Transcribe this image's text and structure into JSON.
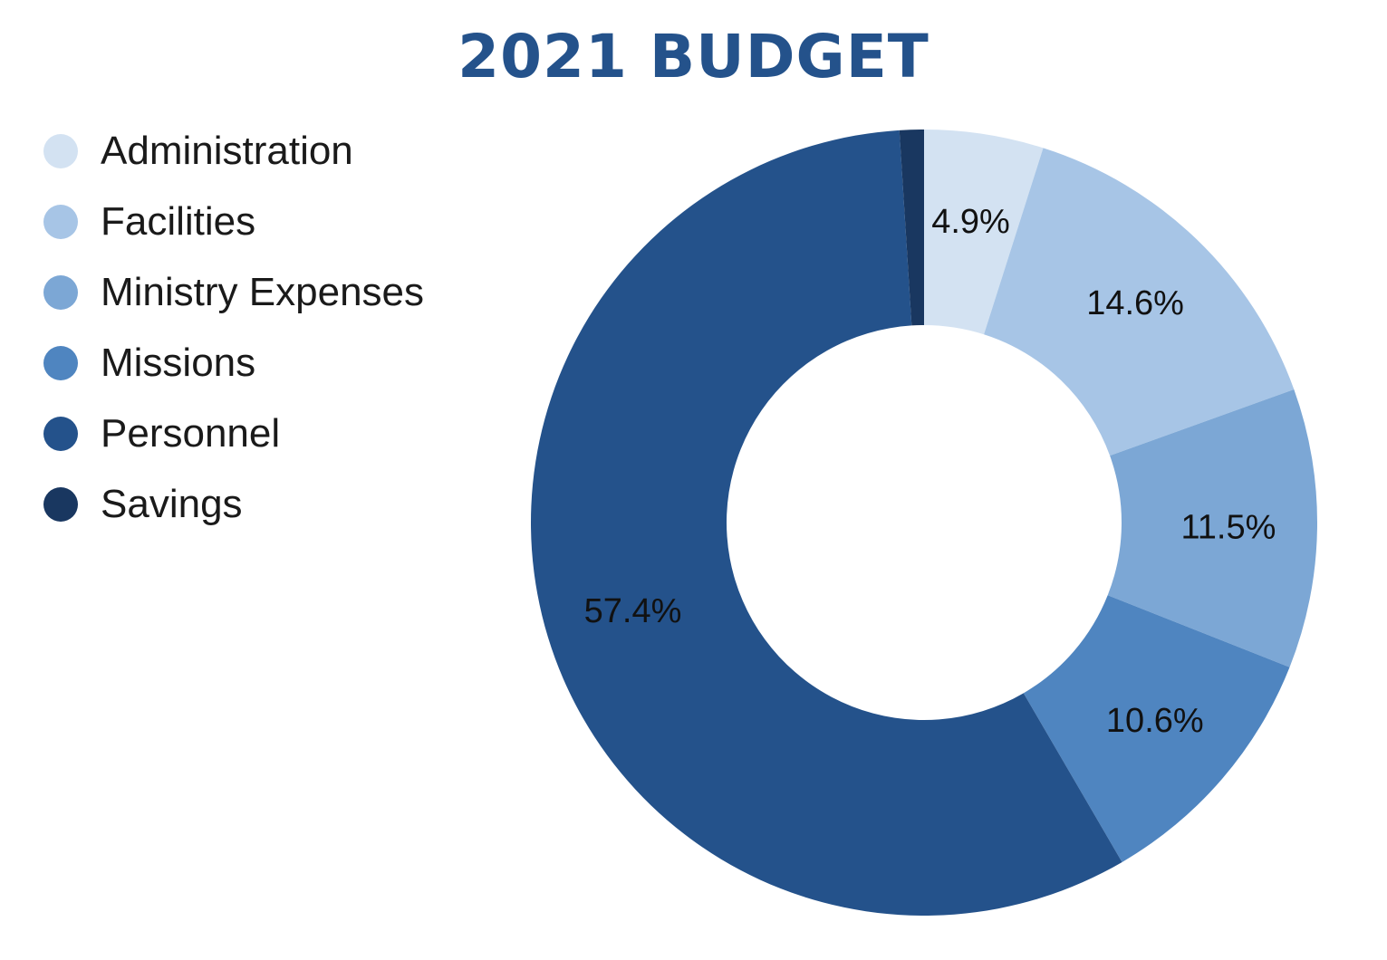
{
  "chart_data": {
    "type": "pie",
    "variant": "donut",
    "title": "2021 BUDGET",
    "legend_position": "left",
    "slices": [
      {
        "name": "Administration",
        "value": 4.9,
        "label": "4.9%",
        "color": "#d3e2f2"
      },
      {
        "name": "Facilities",
        "value": 14.6,
        "label": "14.6%",
        "color": "#a7c5e6"
      },
      {
        "name": "Ministry Expenses",
        "value": 11.5,
        "label": "11.5%",
        "color": "#7ca7d5"
      },
      {
        "name": "Missions",
        "value": 10.6,
        "label": "10.6%",
        "color": "#4f85c0"
      },
      {
        "name": "Personnel",
        "value": 57.4,
        "label": "57.4%",
        "color": "#24528b"
      },
      {
        "name": "Savings",
        "value": 1.0,
        "label": "",
        "color": "#193760"
      }
    ]
  }
}
